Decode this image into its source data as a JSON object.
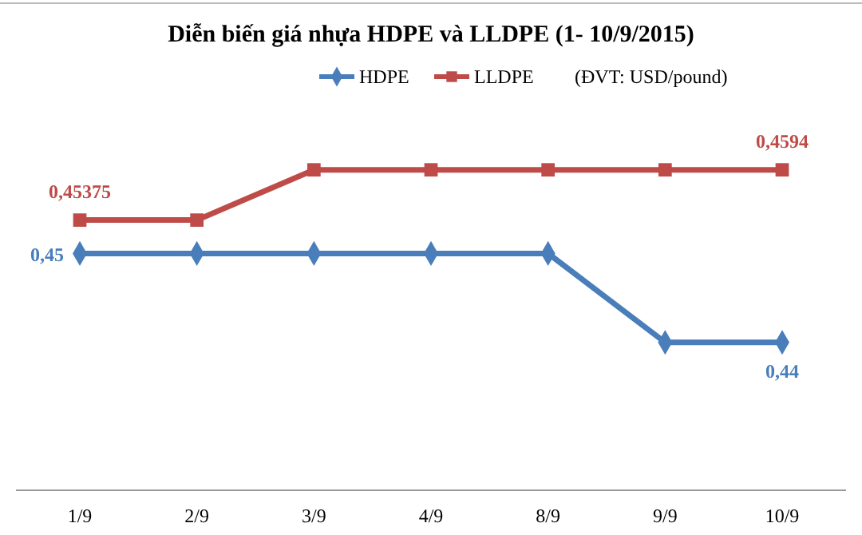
{
  "chart_data": {
    "type": "line",
    "title": "Diễn biến giá nhựa HDPE và LLDPE (1- 10/9/2015)",
    "annotations": [
      "(ĐVT: USD/pound)"
    ],
    "categories": [
      "1/9",
      "2/9",
      "3/9",
      "4/9",
      "8/9",
      "9/9",
      "10/9"
    ],
    "legend": "top right",
    "line_style": "solid",
    "series": [
      {
        "name": "HDPE",
        "color": "#4a7ebb",
        "marker": "diamond",
        "values": [
          0.45,
          0.45,
          0.45,
          0.45,
          0.45,
          0.44,
          0.44
        ],
        "value_labels": [
          "0,45",
          null,
          null,
          null,
          null,
          null,
          "0,44"
        ]
      },
      {
        "name": "LLDPE",
        "color": "#be4b48",
        "marker": "square",
        "values": [
          0.45375,
          0.45375,
          0.4594,
          0.4594,
          0.4594,
          0.4594,
          0.4594
        ],
        "value_labels": [
          "0,45375",
          null,
          null,
          null,
          null,
          null,
          "0,4594"
        ]
      }
    ]
  }
}
